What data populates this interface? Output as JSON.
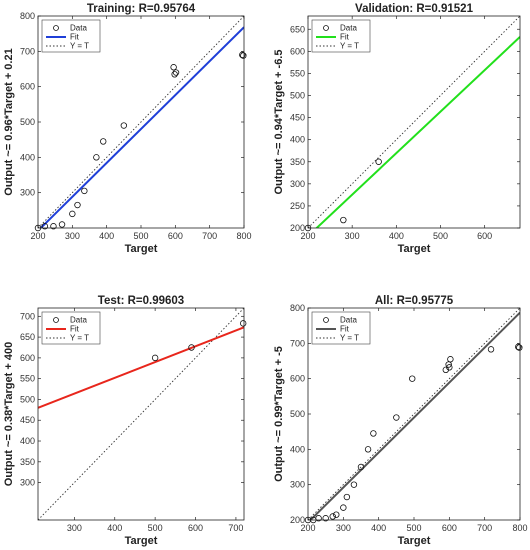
{
  "chart_data": [
    {
      "type": "scatter",
      "title": "Training: R=0.95764",
      "xlabel": "Target",
      "ylabel": "Output ~= 0.96*Target + 0.21",
      "xlim": [
        200,
        800
      ],
      "ylim": [
        200,
        800
      ],
      "xticks": [
        "200",
        "300",
        "400",
        "500",
        "600",
        "700",
        "800"
      ],
      "yticks": [
        "300",
        "400",
        "500",
        "600",
        "700",
        "800"
      ],
      "fit_color": "#1f3fd8",
      "fit_line": [
        [
          200,
          192.21
        ],
        [
          800,
          768.21
        ]
      ],
      "legend": [
        "Data",
        "Fit",
        "Y = T"
      ],
      "legend_position": "top-left",
      "points": [
        [
          200,
          200
        ],
        [
          220,
          205
        ],
        [
          245,
          205
        ],
        [
          270,
          210
        ],
        [
          300,
          240
        ],
        [
          315,
          265
        ],
        [
          335,
          305
        ],
        [
          370,
          400
        ],
        [
          390,
          445
        ],
        [
          450,
          490
        ],
        [
          595,
          655
        ],
        [
          598,
          635
        ],
        [
          602,
          640
        ],
        [
          795,
          690
        ],
        [
          798,
          688
        ]
      ]
    },
    {
      "type": "scatter",
      "title": "Validation: R=0.91521",
      "xlabel": "Target",
      "ylabel": "Output ~= 0.94*Target + -6.5",
      "xlim": [
        200,
        680
      ],
      "ylim": [
        200,
        680
      ],
      "xticks": [
        "200",
        "300",
        "400",
        "500",
        "600"
      ],
      "yticks": [
        "200",
        "250",
        "300",
        "350",
        "400",
        "450",
        "500",
        "550",
        "600",
        "650"
      ],
      "fit_color": "#22e01c",
      "fit_line": [
        [
          200,
          181.5
        ],
        [
          680,
          632.7
        ]
      ],
      "legend": [
        "Data",
        "Fit",
        "Y = T"
      ],
      "legend_position": "top-left",
      "points": [
        [
          200,
          200
        ],
        [
          280,
          218
        ],
        [
          360,
          350
        ]
      ]
    },
    {
      "type": "scatter",
      "title": "Test: R=0.99603",
      "xlabel": "Target",
      "ylabel": "Output ~= 0.38*Target + 400",
      "xlim": [
        210,
        720
      ],
      "ylim": [
        210,
        720
      ],
      "xticks": [
        "300",
        "400",
        "500",
        "600",
        "700"
      ],
      "yticks": [
        "300",
        "350",
        "400",
        "450",
        "500",
        "550",
        "600",
        "650",
        "700"
      ],
      "fit_color": "#e8261c",
      "fit_line": [
        [
          210,
          479.8
        ],
        [
          720,
          673.6
        ]
      ],
      "legend": [
        "Data",
        "Fit",
        "Y = T"
      ],
      "legend_position": "top-left",
      "points": [
        [
          500,
          600
        ],
        [
          590,
          625
        ],
        [
          718,
          683
        ]
      ]
    },
    {
      "type": "scatter",
      "title": "All: R=0.95775",
      "xlabel": "Target",
      "ylabel": "Output ~= 0.99*Target + -5",
      "xlim": [
        200,
        800
      ],
      "ylim": [
        200,
        800
      ],
      "xticks": [
        "200",
        "300",
        "400",
        "500",
        "600",
        "700",
        "800"
      ],
      "yticks": [
        "200",
        "300",
        "400",
        "500",
        "600",
        "700",
        "800"
      ],
      "fit_color": "#555555",
      "fit_line": [
        [
          200,
          193
        ],
        [
          800,
          787
        ]
      ],
      "legend": [
        "Data",
        "Fit",
        "Y = T"
      ],
      "legend_position": "top-left",
      "points": [
        [
          200,
          200
        ],
        [
          215,
          200
        ],
        [
          230,
          205
        ],
        [
          250,
          205
        ],
        [
          270,
          210
        ],
        [
          280,
          215
        ],
        [
          300,
          235
        ],
        [
          310,
          265
        ],
        [
          330,
          300
        ],
        [
          350,
          350
        ],
        [
          370,
          400
        ],
        [
          385,
          445
        ],
        [
          450,
          490
        ],
        [
          495,
          600
        ],
        [
          590,
          625
        ],
        [
          598,
          640
        ],
        [
          600,
          632
        ],
        [
          603,
          655
        ],
        [
          718,
          683
        ],
        [
          795,
          690
        ],
        [
          798,
          688
        ]
      ]
    }
  ]
}
